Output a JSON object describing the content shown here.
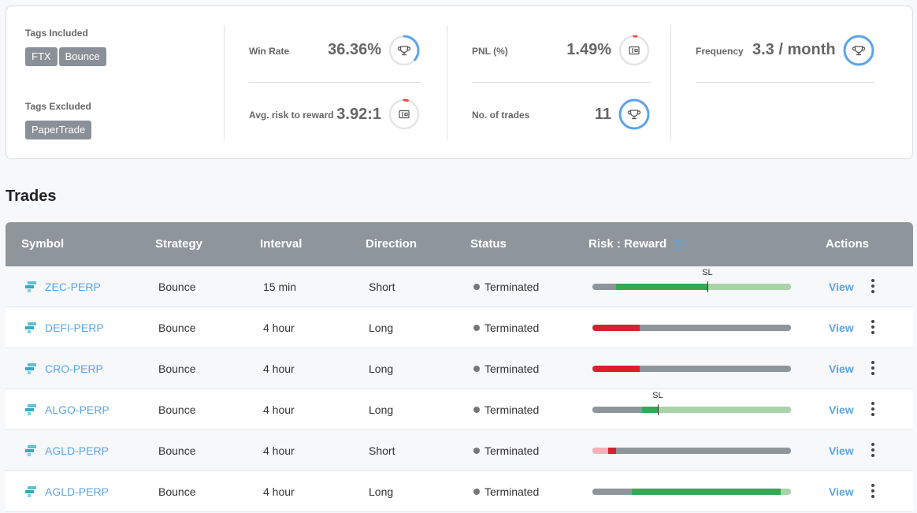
{
  "tags": {
    "included_label": "Tags Included",
    "included": [
      "FTX",
      "Bounce"
    ],
    "excluded_label": "Tags Excluded",
    "excluded": [
      "PaperTrade"
    ]
  },
  "stats": {
    "win_rate": {
      "label": "Win Rate",
      "value": "36.36%",
      "fraction": 0.3636,
      "icon": "trophy-icon",
      "color": "#5aa4ea"
    },
    "pnl": {
      "label": "PNL (%)",
      "value": "1.49%",
      "fraction": 0.015,
      "icon": "money-icon",
      "color": "#e74c3c"
    },
    "frequency": {
      "label": "Frequency",
      "value": "3.3 / month",
      "fraction": 1.0,
      "icon": "trophy-icon",
      "color": "#5aa4ea"
    },
    "risk_reward": {
      "label": "Avg. risk to reward",
      "value": "3.92:1",
      "fraction": 0.04,
      "icon": "money-icon",
      "color": "#e74c3c"
    },
    "num_trades": {
      "label": "No. of trades",
      "value": "11",
      "fraction": 1.0,
      "icon": "trophy-icon",
      "color": "#5aa4ea"
    }
  },
  "trades_title": "Trades",
  "table": {
    "columns": [
      "Symbol",
      "Strategy",
      "Interval",
      "Direction",
      "Status",
      "Risk : Reward",
      "Actions"
    ],
    "info_icon": "info-icon",
    "view_label": "View",
    "sl_label": "SL",
    "colors": {
      "gray": "#8e959b",
      "green": "#34a853",
      "light_green": "#a9d3a8",
      "red": "#dc1f2f",
      "pink": "#f2b2b6"
    },
    "rows": [
      {
        "symbol": "ZEC-PERP",
        "strategy": "Bounce",
        "interval": "15 min",
        "direction": "Short",
        "status": "Terminated",
        "bar": {
          "segments": [
            [
              "gray",
              0,
              0.12
            ],
            [
              "green",
              0.12,
              0.58
            ],
            [
              "light_green",
              0.58,
              1
            ]
          ],
          "marker": 0.58,
          "sl": true
        }
      },
      {
        "symbol": "DEFI-PERP",
        "strategy": "Bounce",
        "interval": "4 hour",
        "direction": "Long",
        "status": "Terminated",
        "bar": {
          "segments": [
            [
              "red",
              0,
              0.24
            ],
            [
              "gray",
              0.24,
              1
            ]
          ],
          "marker": null,
          "sl": false
        }
      },
      {
        "symbol": "CRO-PERP",
        "strategy": "Bounce",
        "interval": "4 hour",
        "direction": "Long",
        "status": "Terminated",
        "bar": {
          "segments": [
            [
              "red",
              0,
              0.24
            ],
            [
              "gray",
              0.24,
              1
            ]
          ],
          "marker": null,
          "sl": false
        }
      },
      {
        "symbol": "ALGO-PERP",
        "strategy": "Bounce",
        "interval": "4 hour",
        "direction": "Long",
        "status": "Terminated",
        "bar": {
          "segments": [
            [
              "gray",
              0,
              0.25
            ],
            [
              "green",
              0.25,
              0.33
            ],
            [
              "light_green",
              0.33,
              1
            ]
          ],
          "marker": 0.33,
          "sl": true
        }
      },
      {
        "symbol": "AGLD-PERP",
        "strategy": "Bounce",
        "interval": "4 hour",
        "direction": "Short",
        "status": "Terminated",
        "bar": {
          "segments": [
            [
              "pink",
              0,
              0.08
            ],
            [
              "red",
              0.08,
              0.12
            ],
            [
              "gray",
              0.12,
              1
            ]
          ],
          "marker": null,
          "sl": false
        }
      },
      {
        "symbol": "AGLD-PERP",
        "strategy": "Bounce",
        "interval": "4 hour",
        "direction": "Long",
        "status": "Terminated",
        "bar": {
          "segments": [
            [
              "gray",
              0,
              0.2
            ],
            [
              "green",
              0.2,
              0.95
            ],
            [
              "light_green",
              0.95,
              1
            ]
          ],
          "marker": null,
          "sl": false
        }
      }
    ]
  }
}
